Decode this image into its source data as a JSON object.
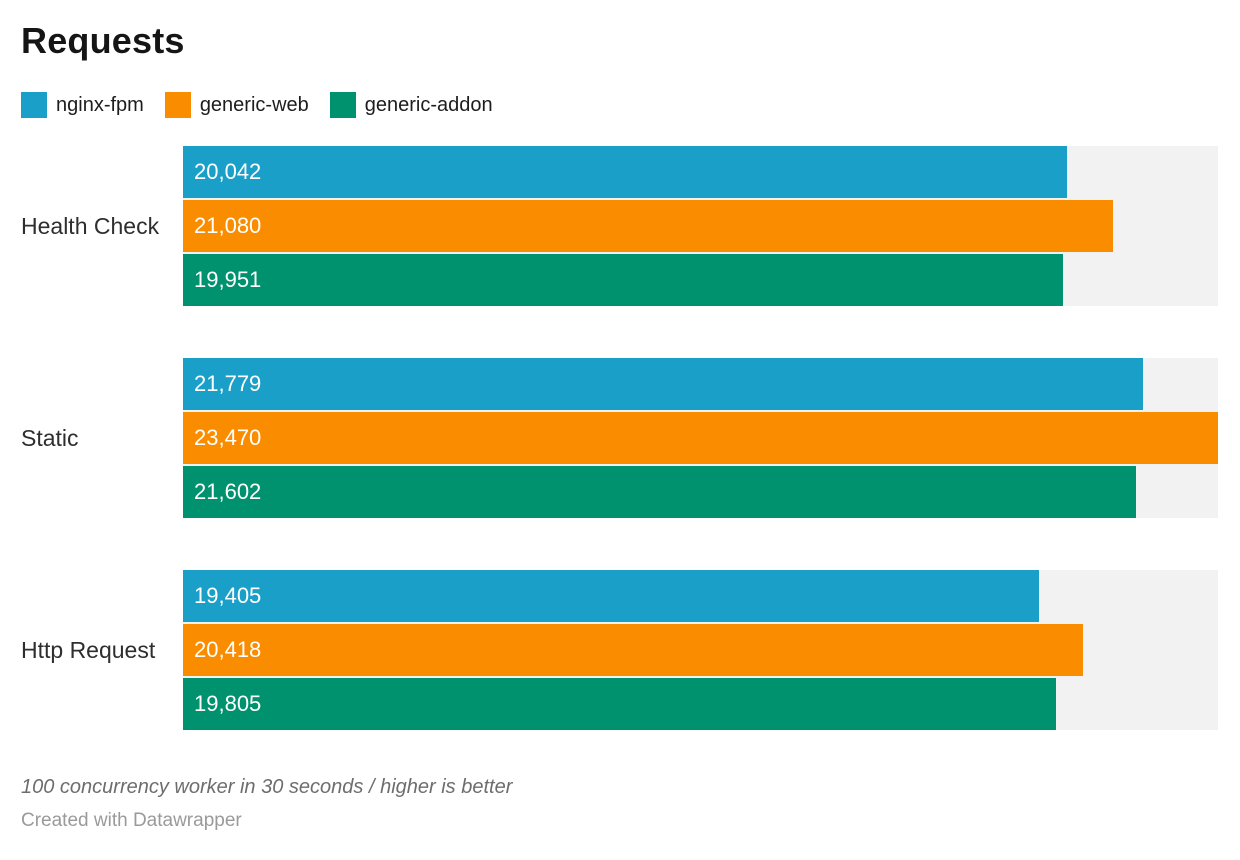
{
  "header": {
    "title": "Requests"
  },
  "chart_data": {
    "type": "bar",
    "orientation": "horizontal",
    "title": "Requests",
    "categories": [
      "Health Check",
      "Static",
      "Http Request"
    ],
    "series": [
      {
        "name": "nginx-fpm",
        "color": "#1AA0C8",
        "values": [
          20042,
          21779,
          19405
        ],
        "labels": [
          "20,042",
          "21,779",
          "19,405"
        ]
      },
      {
        "name": "generic-web",
        "color": "#FA8C00",
        "values": [
          21080,
          23470,
          20418
        ],
        "labels": [
          "21,080",
          "23,470",
          "20,418"
        ]
      },
      {
        "name": "generic-addon",
        "color": "#00916E",
        "values": [
          19951,
          21602,
          19805
        ],
        "labels": [
          "19,951",
          "21,602",
          "19,805"
        ]
      }
    ],
    "xlim": [
      0,
      23470
    ],
    "grid": false,
    "legend_position": "top",
    "track_color": "#F2F2F2",
    "value_label_color": "#FFFFFF"
  },
  "footer": {
    "note": "100 concurrency worker in 30 seconds / higher is better",
    "attribution": "Created with Datawrapper"
  }
}
